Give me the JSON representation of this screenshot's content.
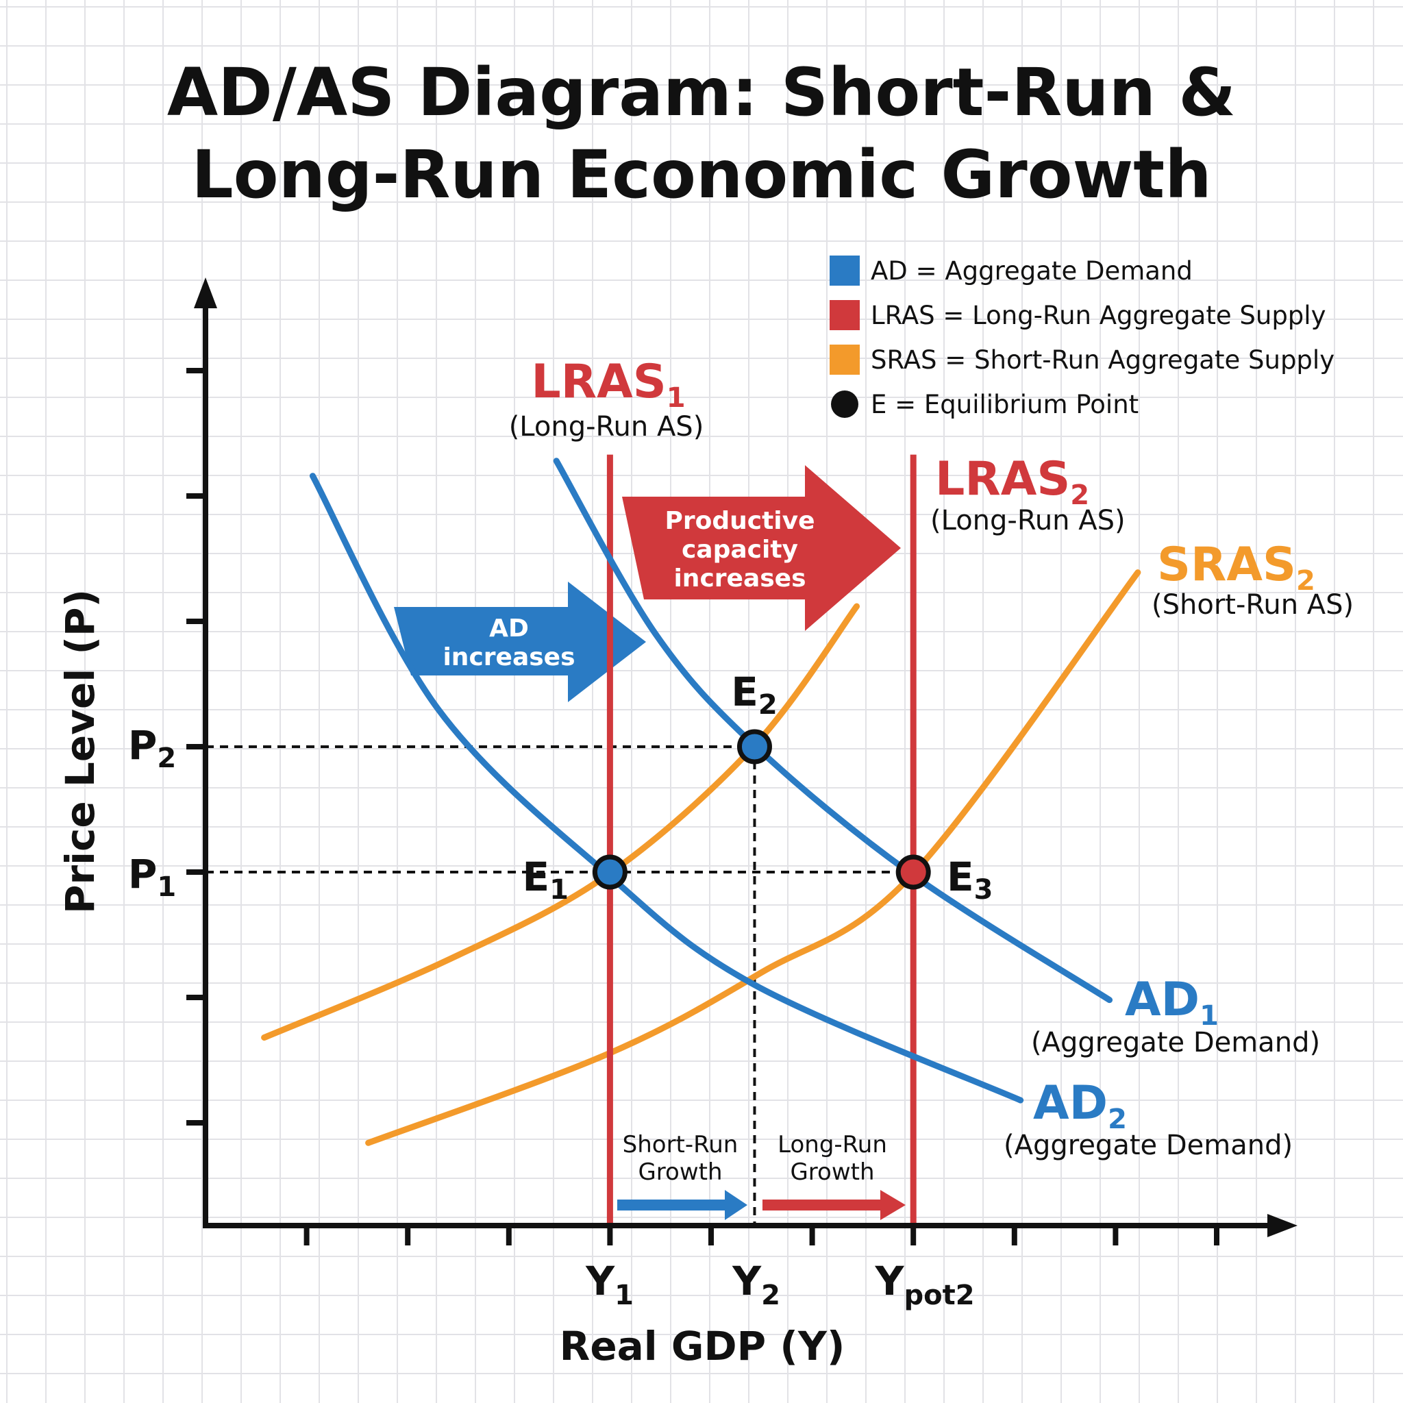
{
  "colors": {
    "ad": "#2a7bc4",
    "lras": "#d0393c",
    "sras": "#f39a2b",
    "equilibrium": "#111111",
    "grid": "#e2e2e6"
  },
  "title": {
    "line1": "AD/AS Diagram: Short-Run &",
    "line2": "Long-Run Economic Growth"
  },
  "legend": [
    {
      "symbol": "square",
      "color": "#2a7bc4",
      "label": "AD = Aggregate Demand"
    },
    {
      "symbol": "square",
      "color": "#d0393c",
      "label": "LRAS = Long-Run Aggregate Supply"
    },
    {
      "symbol": "square",
      "color": "#f39a2b",
      "label": "SRAS = Short-Run Aggregate Supply"
    },
    {
      "symbol": "circle",
      "color": "#111111",
      "label": "E = Equilibrium Point"
    }
  ],
  "labels": {
    "lras1": {
      "main": "LRAS",
      "sub": "1",
      "desc": "(Long-Run AS)"
    },
    "lras2": {
      "main": "LRAS",
      "sub": "2",
      "desc": "(Long-Run AS)"
    },
    "sras2": {
      "main": "SRAS",
      "sub": "2",
      "desc": "(Short-Run AS)"
    },
    "ad1": {
      "main": "AD",
      "sub": "1",
      "desc": "(Aggregate Demand)"
    },
    "ad2": {
      "main": "AD",
      "sub": "2",
      "desc": "(Aggregate Demand)"
    },
    "e1": {
      "main": "E",
      "sub": "1"
    },
    "e2": {
      "main": "E",
      "sub": "2"
    },
    "e3": {
      "main": "E",
      "sub": "3"
    },
    "p1": {
      "main": "P",
      "sub": "1"
    },
    "p2": {
      "main": "P",
      "sub": "2"
    },
    "y1": {
      "main": "Y",
      "sub": "1"
    },
    "y2": {
      "main": "Y",
      "sub": "2"
    },
    "ypot2": {
      "main": "Y",
      "sub": "pot2"
    },
    "ad_arrow": {
      "line1": "AD",
      "line2": "increases"
    },
    "capacity_arrow": {
      "line1": "Productive",
      "line2": "capacity",
      "line3": "increases"
    },
    "short_run_growth": {
      "line1": "Short-Run",
      "line2": "Growth"
    },
    "long_run_growth": {
      "line1": "Long-Run",
      "line2": "Growth"
    }
  },
  "chart_data": {
    "type": "line",
    "title": "AD/AS Diagram: Short-Run & Long-Run Economic Growth",
    "xlabel": "Real GDP (Y)",
    "ylabel": "Price Level (P)",
    "x_ticks": 10,
    "y_ticks": 7,
    "x_tick_labels": [
      {
        "x": 4,
        "label": "Y1"
      },
      {
        "x": 5.43,
        "label": "Y2"
      },
      {
        "x": 7,
        "label": "Ypot2"
      }
    ],
    "y_tick_labels": [
      {
        "y": 3,
        "label": "P1"
      },
      {
        "y": 4,
        "label": "P2"
      }
    ],
    "xlim": [
      0,
      10.8
    ],
    "ylim": [
      0,
      7.8
    ],
    "grid": true,
    "legend": "top-right",
    "series": [
      {
        "name": "AD1",
        "color": "#2a7bc4",
        "points": [
          [
            3.47,
            6.28
          ],
          [
            4.45,
            4.9
          ],
          [
            5.43,
            4.01
          ],
          [
            6.99,
            2.98
          ],
          [
            8.94,
            1.98
          ]
        ]
      },
      {
        "name": "AD2",
        "color": "#2a7bc4",
        "points": [
          [
            1.06,
            6.16
          ],
          [
            2.3,
            4.3
          ],
          [
            3.98,
            2.98
          ],
          [
            5.43,
            2.1
          ],
          [
            8.06,
            1.18
          ]
        ]
      },
      {
        "name": "SRAS1",
        "color": "#f39a2b",
        "points": [
          [
            0.58,
            1.68
          ],
          [
            2.4,
            2.3
          ],
          [
            3.98,
            2.98
          ],
          [
            5.43,
            4.01
          ],
          [
            6.44,
            5.12
          ]
        ]
      },
      {
        "name": "SRAS2",
        "color": "#f39a2b",
        "points": [
          [
            1.61,
            0.84
          ],
          [
            3.98,
            1.55
          ],
          [
            5.5,
            2.2
          ],
          [
            6.99,
            2.98
          ],
          [
            9.22,
            5.39
          ]
        ]
      },
      {
        "name": "LRAS1",
        "color": "#d0393c",
        "vertical_x": 4,
        "top_y": 6.33
      },
      {
        "name": "LRAS2",
        "color": "#d0393c",
        "vertical_x": 7,
        "top_y": 6.33
      }
    ],
    "equilibria": [
      {
        "name": "E1",
        "x": 4,
        "y": 3,
        "color": "#2a7bc4"
      },
      {
        "name": "E2",
        "x": 5.43,
        "y": 4,
        "color": "#2a7bc4"
      },
      {
        "name": "E3",
        "x": 7,
        "y": 3,
        "color": "#d0393c"
      }
    ]
  }
}
